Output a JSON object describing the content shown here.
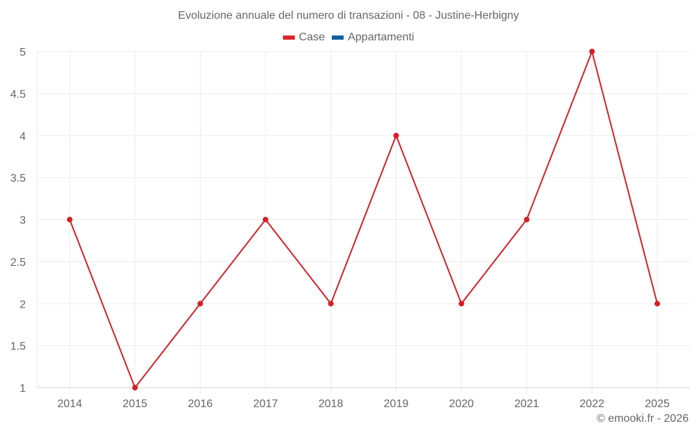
{
  "title": "Evoluzione annuale del numero di transazioni - 08 - Justine-Herbigny",
  "legend": [
    {
      "label": "Case",
      "color": "#dc2626"
    },
    {
      "label": "Appartamenti",
      "color": "#0f62a0"
    }
  ],
  "footer": "© emooki.fr - 2026",
  "colors": {
    "grid": "#ebebeb",
    "axis": "#d4d4d4",
    "text": "#666666",
    "series_case": "#d42026"
  },
  "chart_data": {
    "type": "line",
    "title": "Evoluzione annuale del numero di transazioni - 08 - Justine-Herbigny",
    "xlabel": "",
    "ylabel": "",
    "categories": [
      "2014",
      "2015",
      "2016",
      "2017",
      "2018",
      "2019",
      "2020",
      "2021",
      "2022",
      "2025"
    ],
    "series": [
      {
        "name": "Case",
        "color": "#d42026",
        "values": [
          3,
          1,
          2,
          3,
          2,
          4,
          2,
          3,
          5,
          2
        ]
      },
      {
        "name": "Appartamenti",
        "color": "#0f62a0",
        "values": []
      }
    ],
    "ylim": [
      1,
      5
    ],
    "yticks": [
      "1",
      "1.5",
      "2",
      "2.5",
      "3",
      "3.5",
      "4",
      "4.5",
      "5"
    ],
    "grid": true,
    "legend_position": "top"
  }
}
